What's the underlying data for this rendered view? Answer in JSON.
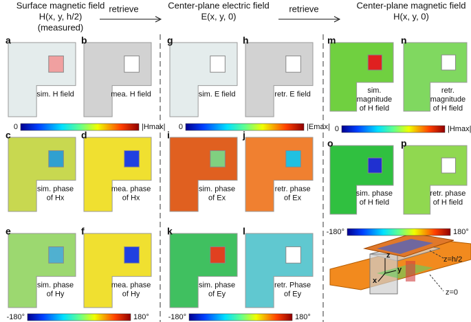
{
  "header": {
    "columns": [
      {
        "lines": [
          "Surface magnetic field",
          "H(x, y, h/2)",
          "(measured)"
        ]
      },
      {
        "lines": [
          "Center-plane electric field",
          "E(x, y, 0)"
        ]
      },
      {
        "lines": [
          "Center-plane magnetic field",
          "H(x, y, 0)"
        ]
      }
    ],
    "arrows": [
      "retrieve",
      "retrieve"
    ]
  },
  "panels": [
    {
      "letter": "a",
      "caption": [
        "sim. H field"
      ]
    },
    {
      "letter": "b",
      "caption": [
        "mea. H field"
      ]
    },
    {
      "letter": "c",
      "caption": [
        "sim. phase",
        "of Hx"
      ]
    },
    {
      "letter": "d",
      "caption": [
        "mea. phase",
        "of Hx"
      ]
    },
    {
      "letter": "e",
      "caption": [
        "sim. phase",
        "of Hy"
      ]
    },
    {
      "letter": "f",
      "caption": [
        "mea. phase",
        "of Hy"
      ]
    },
    {
      "letter": "g",
      "caption": [
        "sim. E field"
      ]
    },
    {
      "letter": "h",
      "caption": [
        "retr. E field"
      ]
    },
    {
      "letter": "i",
      "caption": [
        "sim. phase",
        "of Ex"
      ]
    },
    {
      "letter": "j",
      "caption": [
        "retr. phase",
        "of Ex"
      ]
    },
    {
      "letter": "k",
      "caption": [
        "sim. phase",
        "of Ey"
      ]
    },
    {
      "letter": "l",
      "caption": [
        "retr. Phase",
        "of Ey"
      ]
    },
    {
      "letter": "m",
      "caption": [
        "sim.",
        "magnitude",
        "of H field"
      ]
    },
    {
      "letter": "n",
      "caption": [
        "retr.",
        "magnitude",
        "of H field"
      ]
    },
    {
      "letter": "o",
      "caption": [
        "sim. phase",
        "of H field"
      ]
    },
    {
      "letter": "p",
      "caption": [
        "retr. phase",
        "of H field"
      ]
    }
  ],
  "colorbars": [
    {
      "min_label": "0",
      "max_label": "|Hmax|"
    },
    {
      "min_label": "0",
      "max_label": "|Emax|"
    },
    {
      "min_label": "0",
      "max_label": "|Hmax|"
    },
    {
      "min_label": "-180°",
      "max_label": "180°"
    },
    {
      "min_label": "-180°",
      "max_label": "180°"
    },
    {
      "min_label": "-180°",
      "max_label": "180°"
    }
  ],
  "schematic": {
    "labels": [
      "z",
      "x",
      "y",
      "z=h/2",
      "z=0"
    ]
  }
}
